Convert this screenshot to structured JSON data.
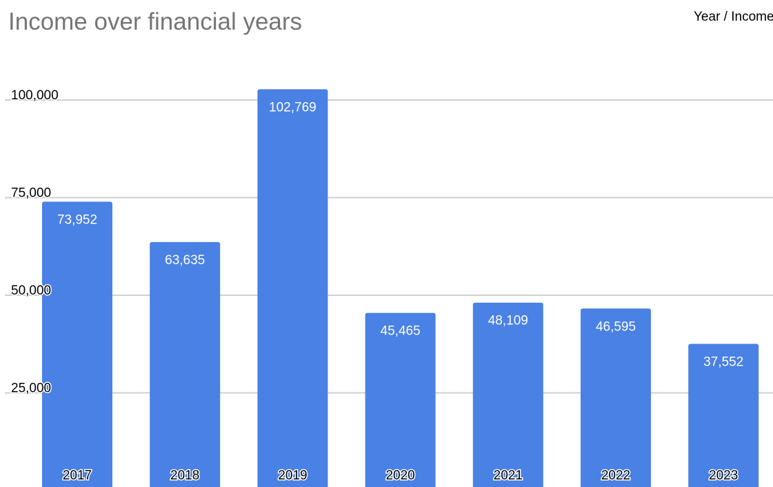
{
  "chart_data": {
    "type": "bar",
    "title": "Income over financial years",
    "legend": "Year / Income",
    "legend_placement": "top-right",
    "categories": [
      "2017",
      "2018",
      "2019",
      "2020",
      "2021",
      "2022",
      "2023"
    ],
    "series": [
      {
        "values": [
          73952,
          63635,
          102769,
          45465,
          48109,
          46595,
          37552
        ]
      }
    ],
    "data_labels": [
      "73,952",
      "63,635",
      "102,769",
      "45,465",
      "48,109",
      "46,595",
      "37,552"
    ],
    "y_ticks": [
      25000,
      50000,
      75000,
      100000
    ],
    "y_tick_labels": [
      "25,000",
      "50,000",
      "75,000",
      "100,000"
    ],
    "ylim": [
      0,
      110000
    ],
    "grid": true,
    "colors": {
      "bar": "#4a81e4",
      "grid": "#cfcfcf",
      "title": "#757575",
      "value_label": "#ffffff"
    }
  }
}
